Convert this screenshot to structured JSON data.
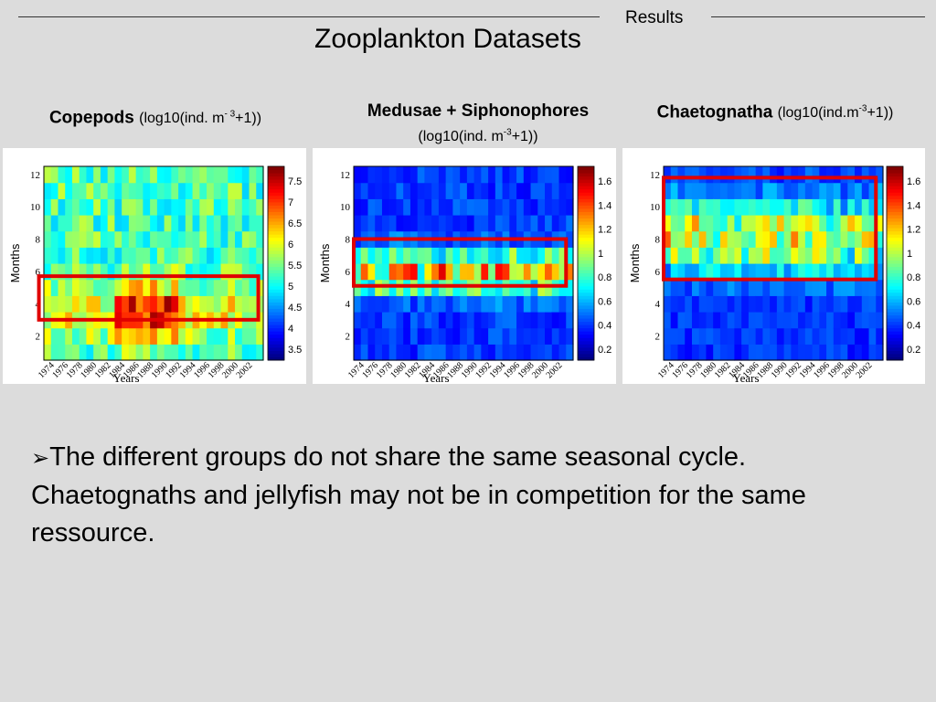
{
  "header": {
    "section": "Results",
    "title": "Zooplankton Datasets"
  },
  "panels": [
    {
      "name": "Copepods",
      "unit_prefix": "(log10(ind. m",
      "unit_sup": "- 3",
      "unit_suffix": "+1))",
      "colorbar_ticks": [
        "7.5",
        "7",
        "6.5",
        "6",
        "5.5",
        "5",
        "4.5",
        "4",
        "3.5"
      ],
      "highlight": "months 2.5–5.2"
    },
    {
      "name": "Medusae + Siphonophores",
      "unit_prefix": "(log10(ind.  m",
      "unit_sup": "-3",
      "unit_suffix": "+1))",
      "colorbar_ticks": [
        "1.6",
        "1.4",
        "1.2",
        "1",
        "0.8",
        "0.6",
        "0.4",
        "0.2"
      ],
      "highlight": "months 4.5–7.5"
    },
    {
      "name": "Chaetognatha",
      "unit_prefix": "(log10(ind.m",
      "unit_sup": "-3",
      "unit_suffix": "+1))",
      "colorbar_ticks": [
        "1.6",
        "1.4",
        "1.2",
        "1",
        "0.8",
        "0.6",
        "0.4",
        "0.2"
      ],
      "highlight": "months 5–11"
    }
  ],
  "axes": {
    "ylabel": "Months",
    "xlabel": "Years",
    "y_ticks": [
      "12",
      "10",
      "8",
      "6",
      "4",
      "2"
    ],
    "x_ticks": [
      "1974",
      "1976",
      "1978",
      "1980",
      "1982",
      "1984",
      "1986",
      "1988",
      "1990",
      "1992",
      "1994",
      "1996",
      "1998",
      "2000",
      "2002"
    ]
  },
  "bullet": {
    "arrow": "➢",
    "text": "The different groups do not share the same seasonal cycle. Chaetognaths and jellyfish may not be in competition for the same ressource."
  },
  "colors": {
    "highlight_box": "#e00000",
    "background": "#dcdcdc"
  }
}
